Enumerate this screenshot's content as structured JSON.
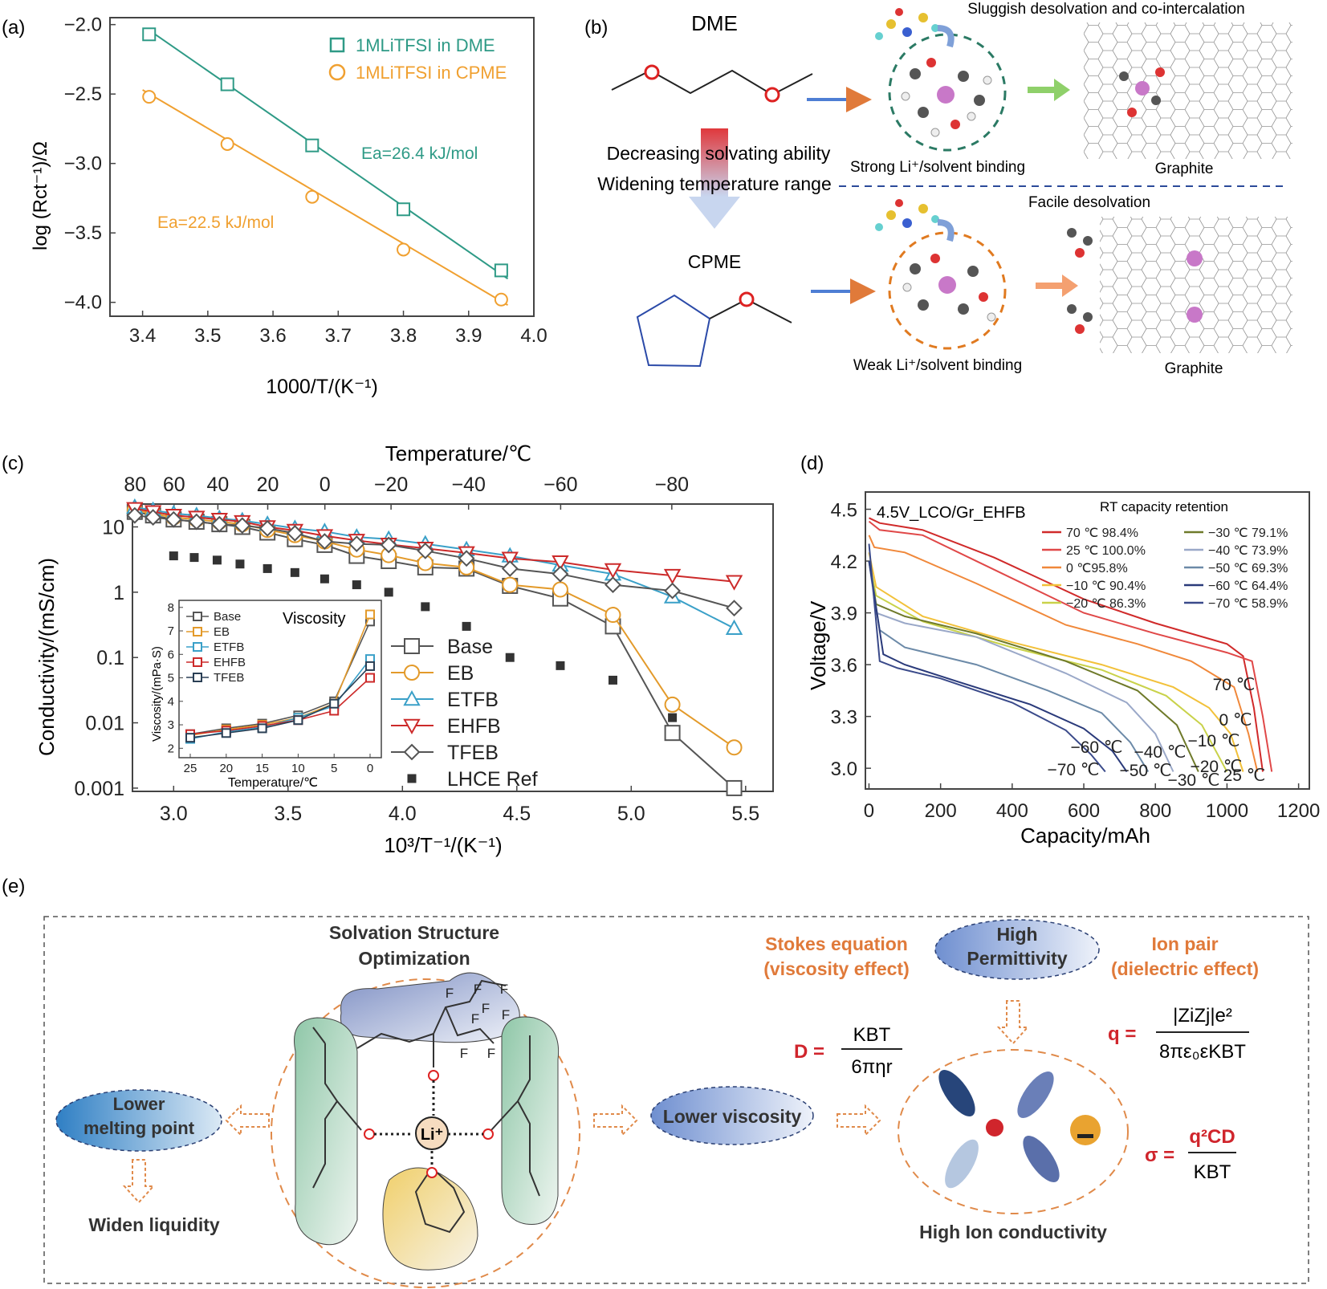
{
  "panel_labels": {
    "a": "(a)",
    "b": "(b)",
    "c": "(c)",
    "d": "(d)",
    "e": "(e)"
  },
  "colors": {
    "dme": "#2e9a86",
    "cpme": "#f0a030",
    "orange": "#e07a3a",
    "navy": "#2a3f73"
  },
  "panel_a": {
    "ylabel": "log (Rct⁻¹)/Ω",
    "xlabel": "1000/T/(K⁻¹)",
    "x_ticks": [
      "3.4",
      "3.5",
      "3.6",
      "3.7",
      "3.8",
      "3.9",
      "4.0"
    ],
    "y_ticks": [
      "−2.0",
      "−2.5",
      "−3.0",
      "−3.5",
      "−4.0"
    ],
    "legend": [
      "1MLiTFSI in DME",
      "1MLiTFSI in CPME"
    ],
    "ea_dme": "Ea=26.4 kJ/mol",
    "ea_cpme": "Ea=22.5 kJ/mol"
  },
  "panel_b": {
    "dme_label": "DME",
    "cpme_label": "CPME",
    "arrow_text_1": "Decreasing solvating ability",
    "arrow_text_2": "Widening temperature range",
    "top_caption": "Sluggish desolvation and co-intercalation",
    "strong_binding": "Strong Li⁺/solvent binding",
    "graphite_1": "Graphite",
    "facile": "Facile desolvation",
    "weak_binding": "Weak Li⁺/solvent binding",
    "graphite_2": "Graphite"
  },
  "panel_c": {
    "top_axis_label": "Temperature/℃",
    "top_ticks": [
      "80",
      "60",
      "40",
      "20",
      "0",
      "−20",
      "−40",
      "−60",
      "−80"
    ],
    "ylabel": "Conductivity/(mS/cm)",
    "y_ticks": [
      "10",
      "1",
      "0.1",
      "0.01",
      "0.001"
    ],
    "xlabel": "10³/T⁻¹/(K⁻¹)",
    "x_ticks": [
      "3.0",
      "3.5",
      "4.0",
      "4.5",
      "5.0",
      "5.5"
    ],
    "legend": [
      "Base",
      "EB",
      "ETFB",
      "EHFB",
      "TFEB",
      "LHCE Ref"
    ],
    "inset": {
      "title": "Viscosity",
      "ylabel": "Viscosity/(mPa·S)",
      "xlabel": "Temperature/℃",
      "x_ticks": [
        "25",
        "20",
        "15",
        "10",
        "5",
        "0"
      ],
      "y_ticks": [
        "2",
        "3",
        "4",
        "5",
        "6",
        "7",
        "8"
      ],
      "legend": [
        "Base",
        "EB",
        "ETFB",
        "EHFB",
        "TFEB"
      ]
    }
  },
  "panel_d": {
    "title": "4.5V_LCO/Gr_EHFB",
    "retention_title": "RT capacity retention",
    "ylabel": "Voltage/V",
    "xlabel": "Capacity/mAh",
    "x_ticks": [
      "0",
      "200",
      "400",
      "600",
      "800",
      "1000",
      "1200"
    ],
    "y_ticks": [
      "4.5",
      "4.2",
      "3.9",
      "3.6",
      "3.3",
      "3.0"
    ],
    "legend": [
      "70 ℃ 98.4%",
      "25 ℃ 100.0%",
      "0 ℃95.8%",
      "−10 ℃ 90.4%",
      "−20 ℃ 86.3%",
      "−30 ℃ 79.1%",
      "−40 ℃ 73.9%",
      "−50 ℃ 69.3%",
      "−60 ℃ 64.4%",
      "−70 ℃ 58.9%"
    ],
    "curve_labels": [
      "70 ℃",
      "0 ℃",
      "−10 ℃",
      "−20 ℃",
      "25 ℃",
      "−30 ℃",
      "−40 ℃",
      "−50 ℃",
      "−60 ℃",
      "−70 ℃"
    ]
  },
  "panel_e": {
    "solvation_title_1": "Solvation Structure",
    "solvation_title_2": "Optimization",
    "lower_mp_1": "Lower",
    "lower_mp_2": "melting point",
    "widen": "Widen liquidity",
    "lower_visc": "Lower viscosity",
    "li": "Li⁺",
    "stokes_1": "Stokes equation",
    "stokes_2": "(viscosity effect)",
    "perm_1": "High",
    "perm_2": "Permittivity",
    "ionpair_1": "Ion pair",
    "ionpair_2": "(dielectric effect)",
    "high_cond": "High Ion conductivity",
    "eq_D_lhs": "D =",
    "eq_D_num": "KBT",
    "eq_D_den": "6πηr",
    "eq_q_lhs": "q =",
    "eq_q_num": "|ZiZj|e²",
    "eq_q_den": "8πε₀εKBT",
    "eq_s_lhs": "σ =",
    "eq_s_num": "q²CD",
    "eq_s_den": "KBT",
    "F": "F"
  },
  "chart_data": [
    {
      "panel": "a",
      "type": "scatter",
      "xlabel": "1000/T/(K⁻¹)",
      "ylabel": "log (Rct⁻¹)/Ω",
      "xlim": [
        3.35,
        4.0
      ],
      "ylim": [
        -4.1,
        -1.95
      ],
      "series": [
        {
          "name": "1MLiTFSI in DME",
          "x": [
            3.41,
            3.53,
            3.66,
            3.8,
            3.95
          ],
          "y": [
            -2.07,
            -2.43,
            -2.87,
            -3.33,
            -3.77
          ],
          "fit": [
            [
              3.41,
              -2.04
            ],
            [
              3.96,
              -3.83
            ]
          ]
        },
        {
          "name": "1MLiTFSI in CPME",
          "x": [
            3.41,
            3.53,
            3.66,
            3.8,
            3.95
          ],
          "y": [
            -2.52,
            -2.86,
            -3.24,
            -3.62,
            -3.98
          ],
          "fit": [
            [
              3.4,
              -2.47
            ],
            [
              3.96,
              -4.02
            ]
          ]
        }
      ]
    },
    {
      "panel": "c",
      "type": "scatter",
      "xlabel": "10³/T⁻¹/(K⁻¹)",
      "ylabel": "Conductivity/(mS/cm)",
      "xlim": [
        2.82,
        5.62
      ],
      "ylim_log10": [
        -3.05,
        1.35
      ],
      "series": [
        {
          "name": "Base",
          "x": [
            2.83,
            2.91,
            3.0,
            3.1,
            3.2,
            3.3,
            3.41,
            3.53,
            3.66,
            3.8,
            3.94,
            4.1,
            4.28,
            4.47,
            4.69,
            4.92,
            5.18,
            5.45
          ],
          "y": [
            17,
            15,
            13,
            12,
            11,
            10,
            8.2,
            6.5,
            5.3,
            3.6,
            3.0,
            2.4,
            2.3,
            1.25,
            0.8,
            0.3,
            0.007,
            0.001
          ]
        },
        {
          "name": "EB",
          "x": [
            2.83,
            2.91,
            3.0,
            3.1,
            3.2,
            3.3,
            3.41,
            3.53,
            3.66,
            3.8,
            3.94,
            4.1,
            4.28,
            4.47,
            4.69,
            4.92,
            5.18,
            5.45
          ],
          "y": [
            18,
            16,
            14,
            13,
            12,
            11,
            9,
            7.5,
            6,
            4.5,
            3.7,
            2.8,
            2.4,
            1.3,
            1.1,
            0.45,
            0.019,
            0.0042
          ]
        },
        {
          "name": "ETFB",
          "x": [
            2.83,
            2.91,
            3.0,
            3.1,
            3.2,
            3.3,
            3.41,
            3.53,
            3.66,
            3.8,
            3.94,
            4.1,
            4.28,
            4.47,
            4.69,
            4.92,
            5.18,
            5.45
          ],
          "y": [
            20,
            18,
            16,
            15,
            13.5,
            12.5,
            11,
            9.5,
            8.5,
            7,
            6.5,
            5.5,
            4.5,
            3.6,
            2.6,
            1.9,
            0.85,
            0.28
          ]
        },
        {
          "name": "EHFB",
          "x": [
            2.83,
            2.91,
            3.0,
            3.1,
            3.2,
            3.3,
            3.41,
            3.53,
            3.66,
            3.8,
            3.94,
            4.1,
            4.28,
            4.47,
            4.69,
            4.92,
            5.18,
            5.45
          ],
          "y": [
            19,
            17,
            15,
            14,
            13,
            12,
            10,
            8.8,
            7.3,
            6.2,
            5.4,
            4.7,
            4,
            3.3,
            2.9,
            2.2,
            1.8,
            1.45
          ]
        },
        {
          "name": "TFEB",
          "x": [
            2.83,
            2.91,
            3.0,
            3.1,
            3.2,
            3.3,
            3.41,
            3.53,
            3.66,
            3.8,
            3.94,
            4.1,
            4.28,
            4.47,
            4.69,
            4.92,
            5.18,
            5.45
          ],
          "y": [
            15,
            14,
            13,
            12,
            11,
            10.5,
            9.5,
            8,
            6,
            5.5,
            5.3,
            4.3,
            3.3,
            2.3,
            1.9,
            1.3,
            1.05,
            0.57
          ]
        },
        {
          "name": "LHCE Ref",
          "x": [
            3.0,
            3.09,
            3.19,
            3.29,
            3.41,
            3.53,
            3.66,
            3.8,
            3.94,
            4.1,
            4.28,
            4.47,
            4.69,
            4.92,
            5.18
          ],
          "y": [
            3.6,
            3.4,
            3.1,
            2.7,
            2.3,
            2.0,
            1.6,
            1.3,
            1.0,
            0.6,
            0.3,
            0.1,
            0.075,
            0.045,
            0.012
          ]
        }
      ]
    },
    {
      "panel": "c-inset",
      "type": "line",
      "xlabel": "Temperature/℃",
      "ylabel": "Viscosity/(mPa·S)",
      "x": [
        25,
        20,
        15,
        10,
        5,
        0
      ],
      "ylim": [
        1.6,
        8.3
      ],
      "series": [
        {
          "name": "Base",
          "values": [
            2.6,
            2.85,
            3.05,
            3.4,
            4.0,
            7.4
          ]
        },
        {
          "name": "EB",
          "values": [
            2.55,
            2.8,
            3.0,
            3.3,
            3.9,
            7.7
          ]
        },
        {
          "name": "ETFB",
          "values": [
            2.4,
            2.7,
            2.9,
            3.3,
            3.8,
            5.8
          ]
        },
        {
          "name": "EHFB",
          "values": [
            2.6,
            2.75,
            2.95,
            3.2,
            3.6,
            5.0
          ]
        },
        {
          "name": "TFEB",
          "values": [
            2.45,
            2.65,
            2.85,
            3.2,
            3.9,
            5.5
          ]
        }
      ]
    },
    {
      "panel": "d",
      "type": "line",
      "xlabel": "Capacity/mAh",
      "ylabel": "Voltage/V",
      "xlim": [
        -10,
        1230
      ],
      "ylim": [
        2.88,
        4.6
      ],
      "series": [
        {
          "name": "70 ℃ 98.4%",
          "x": [
            0,
            30,
            150,
            350,
            600,
            800,
            1000,
            1045,
            1075,
            1100
          ],
          "y": [
            4.45,
            4.42,
            4.38,
            4.22,
            3.98,
            3.84,
            3.72,
            3.65,
            3.35,
            2.98
          ]
        },
        {
          "name": "25 ℃ 100.0%",
          "x": [
            0,
            30,
            150,
            350,
            600,
            800,
            1000,
            1070,
            1100,
            1125
          ],
          "y": [
            4.43,
            4.38,
            4.35,
            4.15,
            3.9,
            3.78,
            3.67,
            3.62,
            3.3,
            2.98
          ]
        },
        {
          "name": "0 ℃95.8%",
          "x": [
            0,
            15,
            100,
            300,
            550,
            750,
            900,
            1020,
            1060,
            1085
          ],
          "y": [
            4.35,
            4.28,
            4.25,
            4.07,
            3.83,
            3.72,
            3.62,
            3.47,
            3.2,
            2.98
          ]
        },
        {
          "name": "−10 ℃ 90.4%",
          "x": [
            0,
            20,
            150,
            400,
            650,
            850,
            950,
            1010,
            1045
          ],
          "y": [
            4.25,
            4.05,
            3.88,
            3.73,
            3.6,
            3.47,
            3.35,
            3.2,
            2.98
          ]
        },
        {
          "name": "−20 ℃ 86.3%",
          "x": [
            0,
            20,
            150,
            400,
            650,
            830,
            930,
            1000
          ],
          "y": [
            4.2,
            4.0,
            3.85,
            3.7,
            3.57,
            3.42,
            3.25,
            2.98
          ]
        },
        {
          "name": "−30 ℃ 79.1%",
          "x": [
            0,
            20,
            100,
            300,
            550,
            750,
            860,
            920
          ],
          "y": [
            4.2,
            3.95,
            3.88,
            3.78,
            3.62,
            3.45,
            3.25,
            2.98
          ]
        },
        {
          "name": "−40 ℃ 73.9%",
          "x": [
            0,
            20,
            100,
            300,
            550,
            720,
            800,
            850
          ],
          "y": [
            4.2,
            3.9,
            3.84,
            3.76,
            3.55,
            3.38,
            3.2,
            2.98
          ]
        },
        {
          "name": "−50 ℃ 69.3%",
          "x": [
            0,
            30,
            100,
            300,
            500,
            650,
            730,
            780
          ],
          "y": [
            4.2,
            3.8,
            3.7,
            3.6,
            3.45,
            3.32,
            3.15,
            2.98
          ]
        },
        {
          "name": "−60 ℃ 64.4%",
          "x": [
            0,
            40,
            100,
            250,
            450,
            600,
            680,
            720
          ],
          "y": [
            4.2,
            3.66,
            3.6,
            3.5,
            3.37,
            3.23,
            3.1,
            2.98
          ]
        },
        {
          "name": "−70 ℃ 58.9%",
          "x": [
            0,
            30,
            80,
            200,
            400,
            550,
            620,
            660
          ],
          "y": [
            4.3,
            3.62,
            3.58,
            3.52,
            3.38,
            3.22,
            3.08,
            2.98
          ]
        }
      ]
    }
  ]
}
